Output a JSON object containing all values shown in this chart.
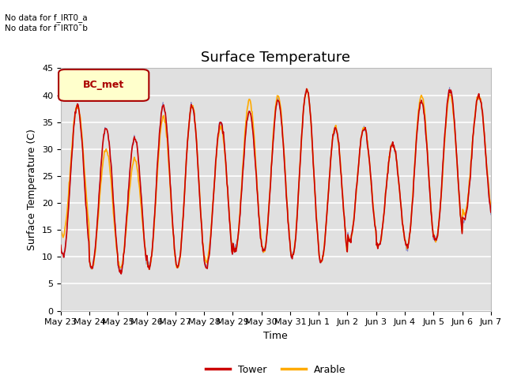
{
  "title": "Surface Temperature",
  "xlabel": "Time",
  "ylabel": "Surface Temperature (C)",
  "ylim": [
    0,
    45
  ],
  "yticks": [
    0,
    5,
    10,
    15,
    20,
    25,
    30,
    35,
    40,
    45
  ],
  "tower_color": "#cc0000",
  "arable_color": "#ffaa00",
  "purple_color": "#6666bb",
  "background_color": "#e0e0e0",
  "legend_box_color": "#ffffcc",
  "legend_box_border": "#aa0000",
  "legend_text": "BC_met",
  "no_data_text1": "No data for f_IRT0_a",
  "no_data_text2": "No data for f¯IRT0¯b",
  "x_tick_labels": [
    "May 23",
    "May 24",
    "May 25",
    "May 26",
    "May 27",
    "May 28",
    "May 29",
    "May 30",
    "May 31",
    "Jun 1",
    "Jun 2",
    "Jun 3",
    "Jun 4",
    "Jun 5",
    "Jun 6",
    "Jun 7"
  ],
  "n_days": 15,
  "day_peaks": [
    38,
    34,
    32,
    38,
    38,
    35,
    37,
    39,
    41,
    34,
    34,
    31,
    39,
    41,
    40
  ],
  "day_troughs": [
    10,
    8,
    7,
    8,
    8,
    8,
    11,
    11,
    10,
    9,
    13,
    12,
    12,
    13,
    17
  ],
  "day_peaks_ar": [
    38,
    30,
    28,
    36,
    38,
    34,
    39,
    40,
    41,
    34,
    34,
    31,
    40,
    40,
    40
  ],
  "day_troughs_ar": [
    14,
    8,
    8,
    8,
    8,
    9,
    11,
    11,
    10,
    9,
    13,
    12,
    12,
    13,
    18
  ],
  "title_fontsize": 13,
  "axis_fontsize": 9,
  "tick_fontsize": 8
}
